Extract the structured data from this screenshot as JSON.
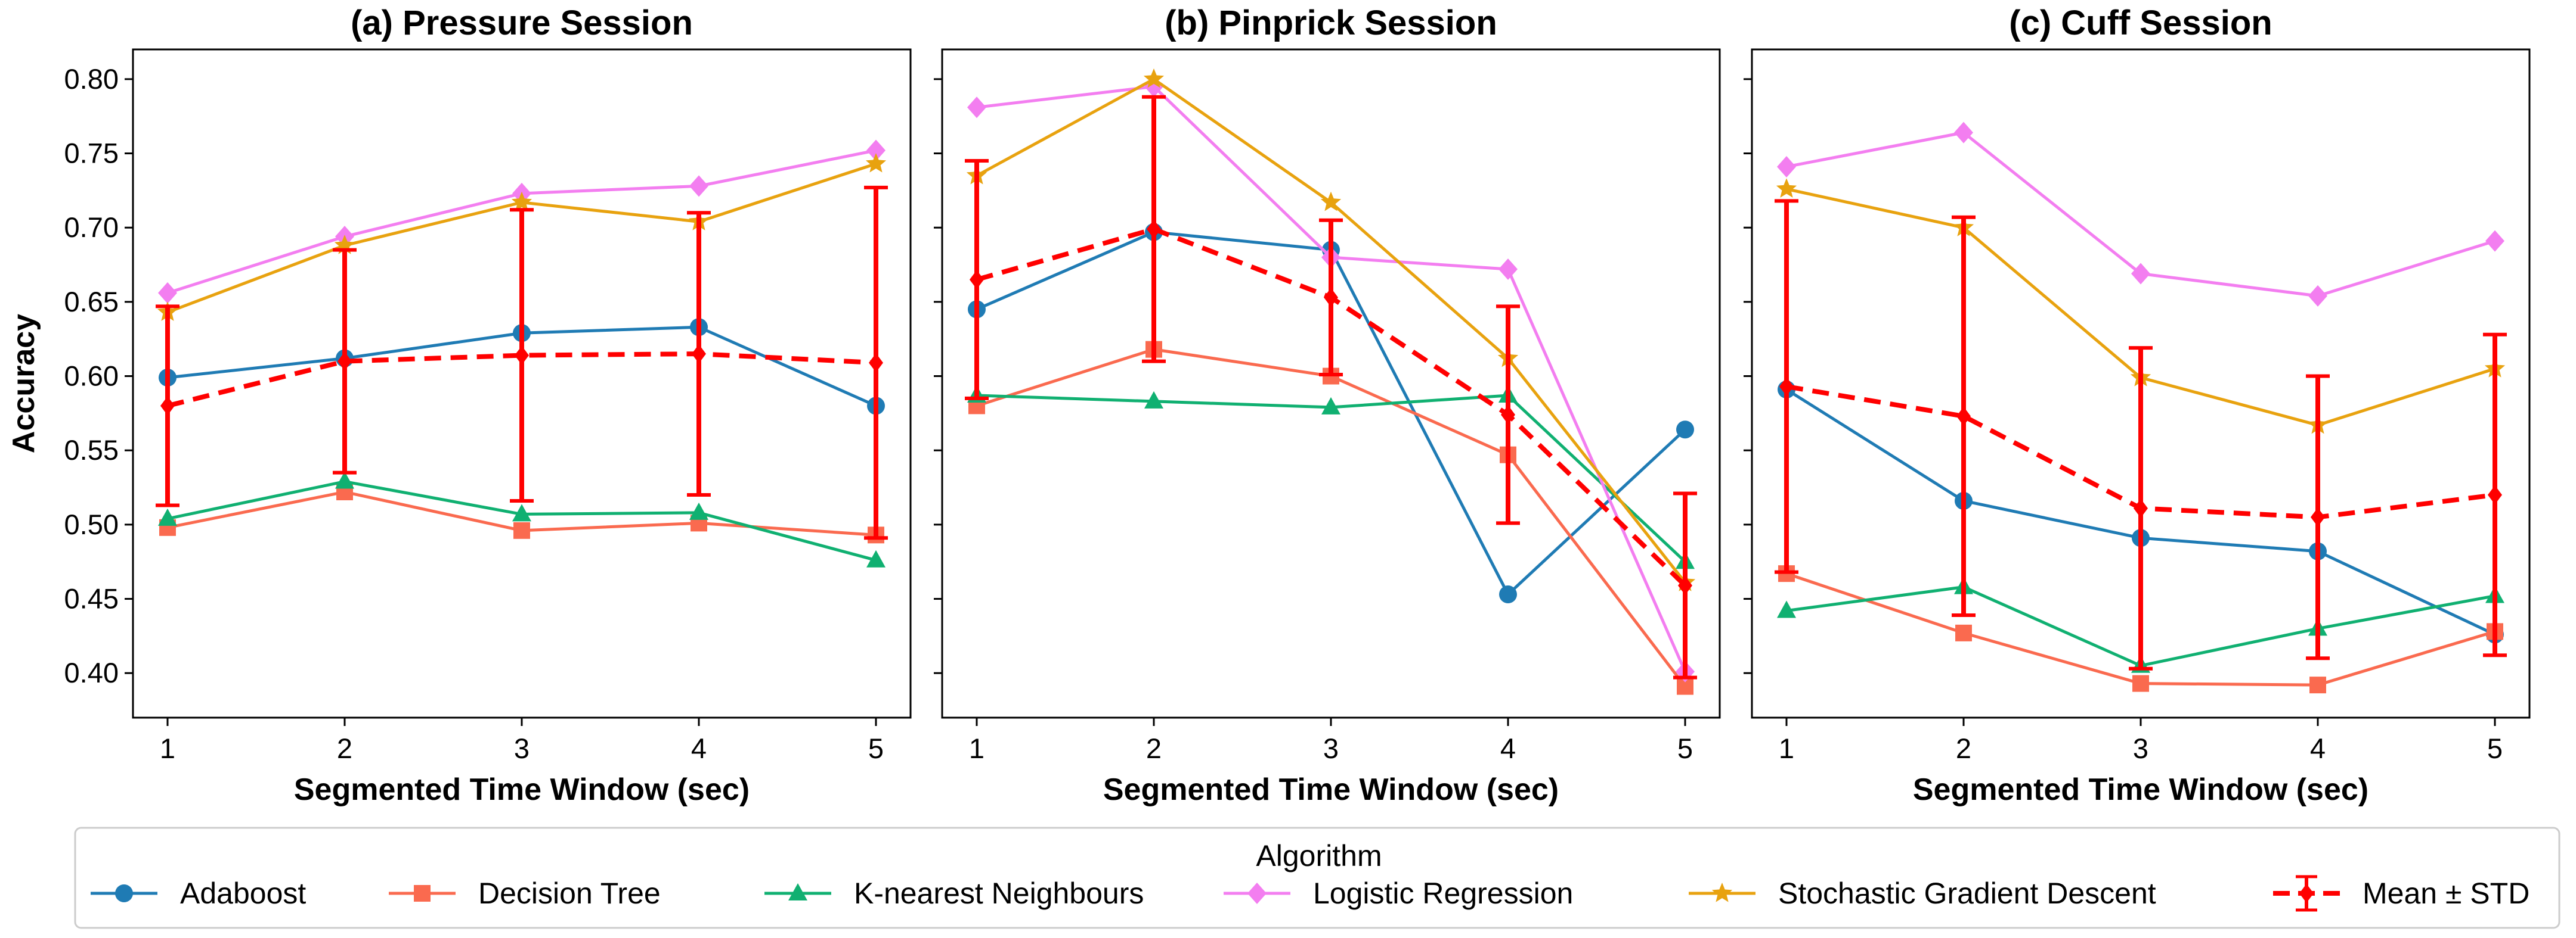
{
  "legend": {
    "title": "Algorithm",
    "mean_label": "Mean ± STD"
  },
  "colors": {
    "Adaboost": "#1f7bb4",
    "Decision Tree": "#fa6a4f",
    "K-nearest Neighbours": "#10b071",
    "Logistic Regression": "#f37ef0",
    "Stochastic Gradient Descent": "#e8a20f",
    "Mean": "#ff0000"
  },
  "markers": {
    "Adaboost": "circle",
    "Decision Tree": "square",
    "K-nearest Neighbours": "triangle",
    "Logistic Regression": "diamond",
    "Stochastic Gradient Descent": "star"
  },
  "chart_data": [
    {
      "type": "line",
      "title": "(a) Pressure Session",
      "xlabel": "Segmented Time Window (sec)",
      "ylabel": "Accuracy",
      "x": [
        1,
        2,
        3,
        4,
        5
      ],
      "xticks": [
        "1",
        "2",
        "3",
        "4",
        "5"
      ],
      "ylim": [
        0.37,
        0.82
      ],
      "yticks": [
        "0.40",
        "0.45",
        "0.50",
        "0.55",
        "0.60",
        "0.65",
        "0.70",
        "0.75",
        "0.80"
      ],
      "series": [
        {
          "name": "Adaboost",
          "values": [
            0.599,
            0.612,
            0.629,
            0.633,
            0.58
          ]
        },
        {
          "name": "Decision Tree",
          "values": [
            0.498,
            0.522,
            0.496,
            0.501,
            0.493
          ]
        },
        {
          "name": "K-nearest Neighbours",
          "values": [
            0.504,
            0.529,
            0.507,
            0.508,
            0.476
          ]
        },
        {
          "name": "Logistic Regression",
          "values": [
            0.656,
            0.694,
            0.723,
            0.728,
            0.752
          ]
        },
        {
          "name": "Stochastic Gradient Descent",
          "values": [
            0.643,
            0.688,
            0.717,
            0.704,
            0.743
          ]
        }
      ],
      "mean": [
        0.58,
        0.61,
        0.614,
        0.615,
        0.609
      ],
      "std": [
        0.067,
        0.075,
        0.098,
        0.095,
        0.118
      ]
    },
    {
      "type": "line",
      "title": "(b) Pinprick Session",
      "xlabel": "Segmented Time Window (sec)",
      "ylabel": "",
      "x": [
        1,
        2,
        3,
        4,
        5
      ],
      "xticks": [
        "1",
        "2",
        "3",
        "4",
        "5"
      ],
      "ylim": [
        0.37,
        0.82
      ],
      "yticks": [],
      "series": [
        {
          "name": "Adaboost",
          "values": [
            0.645,
            0.697,
            0.685,
            0.453,
            0.564
          ]
        },
        {
          "name": "Decision Tree",
          "values": [
            0.58,
            0.618,
            0.6,
            0.547,
            0.391
          ]
        },
        {
          "name": "K-nearest Neighbours",
          "values": [
            0.587,
            0.583,
            0.579,
            0.587,
            0.475
          ]
        },
        {
          "name": "Logistic Regression",
          "values": [
            0.781,
            0.795,
            0.68,
            0.672,
            0.401
          ]
        },
        {
          "name": "Stochastic Gradient Descent",
          "values": [
            0.735,
            0.8,
            0.717,
            0.612,
            0.461
          ]
        }
      ],
      "mean": [
        0.665,
        0.699,
        0.653,
        0.574,
        0.459
      ],
      "std": [
        0.08,
        0.089,
        0.052,
        0.073,
        0.062
      ]
    },
    {
      "type": "line",
      "title": "(c) Cuff Session",
      "xlabel": "Segmented Time Window (sec)",
      "ylabel": "",
      "x": [
        1,
        2,
        3,
        4,
        5
      ],
      "xticks": [
        "1",
        "2",
        "3",
        "4",
        "5"
      ],
      "ylim": [
        0.37,
        0.82
      ],
      "yticks": [],
      "series": [
        {
          "name": "Adaboost",
          "values": [
            0.591,
            0.516,
            0.491,
            0.482,
            0.426
          ]
        },
        {
          "name": "Decision Tree",
          "values": [
            0.467,
            0.427,
            0.393,
            0.392,
            0.428
          ]
        },
        {
          "name": "K-nearest Neighbours",
          "values": [
            0.442,
            0.458,
            0.405,
            0.43,
            0.452
          ]
        },
        {
          "name": "Logistic Regression",
          "values": [
            0.741,
            0.764,
            0.669,
            0.654,
            0.691
          ]
        },
        {
          "name": "Stochastic Gradient Descent",
          "values": [
            0.726,
            0.7,
            0.599,
            0.567,
            0.605
          ]
        }
      ],
      "mean": [
        0.593,
        0.573,
        0.511,
        0.505,
        0.52
      ],
      "std": [
        0.125,
        0.134,
        0.108,
        0.095,
        0.108
      ]
    }
  ]
}
